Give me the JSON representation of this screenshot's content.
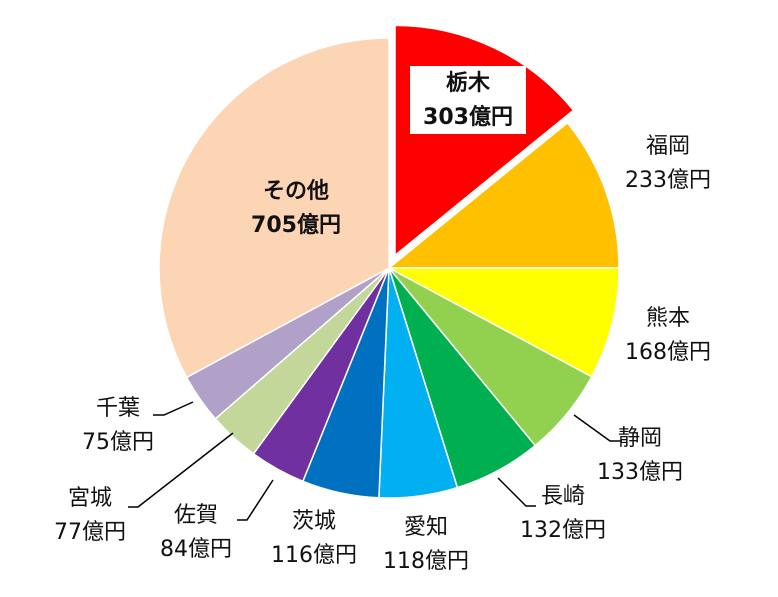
{
  "chart_data": {
    "type": "pie",
    "unit": "億円",
    "slices": [
      {
        "name": "栃木",
        "value": 303,
        "label": "303億円",
        "color": "#ff0000",
        "exploded": true
      },
      {
        "name": "福岡",
        "value": 233,
        "label": "233億円",
        "color": "#ffc000"
      },
      {
        "name": "熊本",
        "value": 168,
        "label": "168億円",
        "color": "#ffff00"
      },
      {
        "name": "静岡",
        "value": 133,
        "label": "133億円",
        "color": "#92d050"
      },
      {
        "name": "長崎",
        "value": 132,
        "label": "132億円",
        "color": "#00b050"
      },
      {
        "name": "愛知",
        "value": 118,
        "label": "118億円",
        "color": "#00b0f0"
      },
      {
        "name": "茨城",
        "value": 116,
        "label": "116億円",
        "color": "#0070c0"
      },
      {
        "name": "佐賀",
        "value": 84,
        "label": "84億円",
        "color": "#7030a0"
      },
      {
        "name": "宮城",
        "value": 77,
        "label": "77億円",
        "color": "#c4d79b"
      },
      {
        "name": "千葉",
        "value": 75,
        "label": "75億円",
        "color": "#b1a0c7"
      },
      {
        "name": "その他",
        "value": 705,
        "label": "705億円",
        "color": "#fcd5b4"
      }
    ]
  }
}
